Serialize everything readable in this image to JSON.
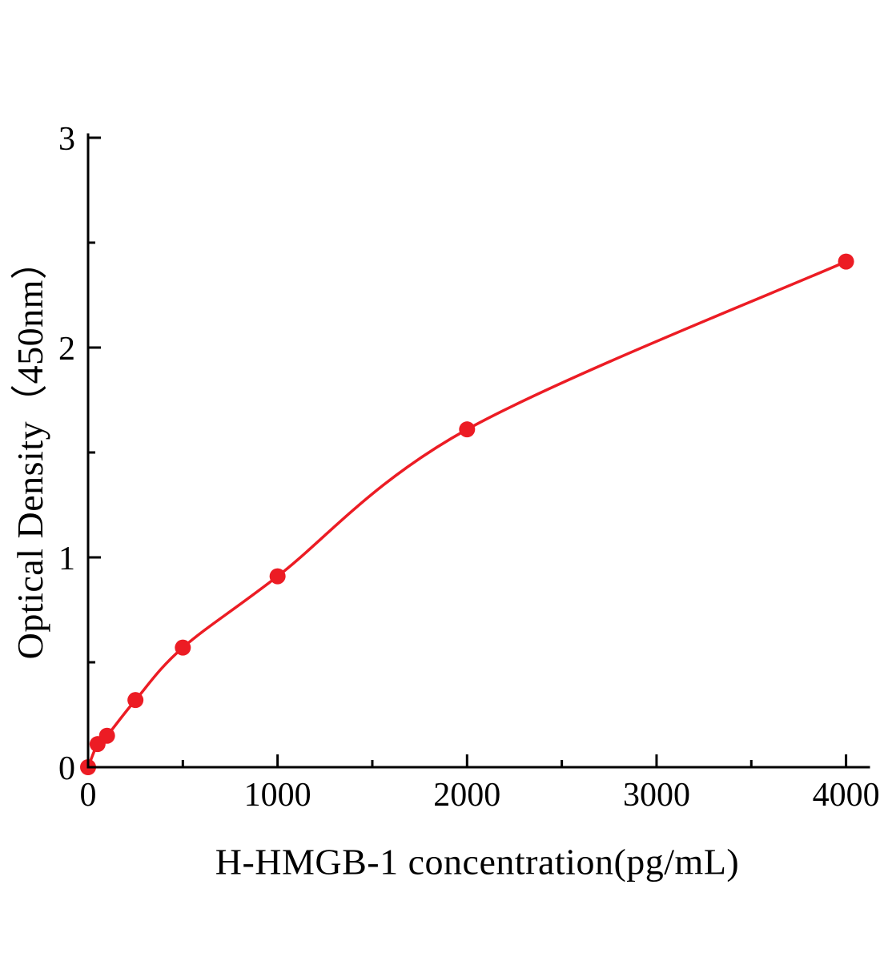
{
  "chart": {
    "title": "",
    "colors": {
      "line": "#ec1c24",
      "marker": "#ec1c24",
      "axis": "#000000",
      "background": "#ffffff"
    }
  },
  "chart_data": {
    "type": "scatter",
    "fit_curve": true,
    "title": "",
    "xlabel": "H-HMGB-1 concentration(pg/mL)",
    "ylabel": "Optical Density（450nm）",
    "x": [
      0,
      50,
      100,
      250,
      500,
      1000,
      2000,
      4000
    ],
    "y": [
      0,
      0.11,
      0.15,
      0.32,
      0.57,
      0.91,
      1.61,
      2.41
    ],
    "xlim": [
      0,
      4120
    ],
    "ylim": [
      0,
      3
    ],
    "x_major_ticks": [
      0,
      1000,
      2000,
      3000,
      4000
    ],
    "x_minor_ticks": [
      500,
      1500,
      2500,
      3500
    ],
    "y_major_ticks": [
      0,
      1,
      2,
      3
    ],
    "y_minor_ticks": [
      0.5,
      1.5,
      2.5
    ],
    "grid": false,
    "legend": null
  }
}
